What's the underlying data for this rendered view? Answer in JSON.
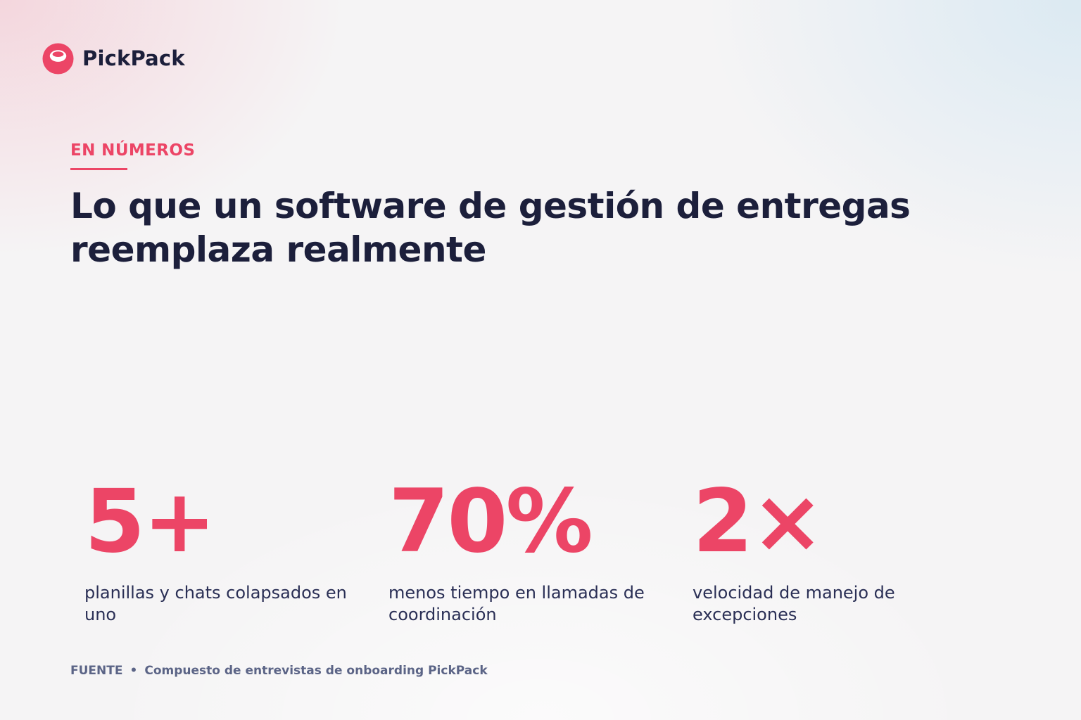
{
  "brand": {
    "name": "PickPack",
    "accent_color": "#ec4566",
    "text_color": "#1c1f3b",
    "logo_icon": "pickpack-logo-icon"
  },
  "section": {
    "eyebrow": "EN NÚMEROS",
    "headline_line1": "Lo que un software de gestión de entregas",
    "headline_line2": "reemplaza realmente"
  },
  "stats": [
    {
      "value": "5+",
      "label": "planillas y chats colapsados en uno"
    },
    {
      "value": "70%",
      "label": "menos tiempo en llamadas de coordinación"
    },
    {
      "value": "2×",
      "label": "velocidad de manejo de excepciones"
    }
  ],
  "footer": {
    "label": "FUENTE",
    "separator": "•",
    "source": "Compuesto de entrevistas de onboarding PickPack"
  }
}
